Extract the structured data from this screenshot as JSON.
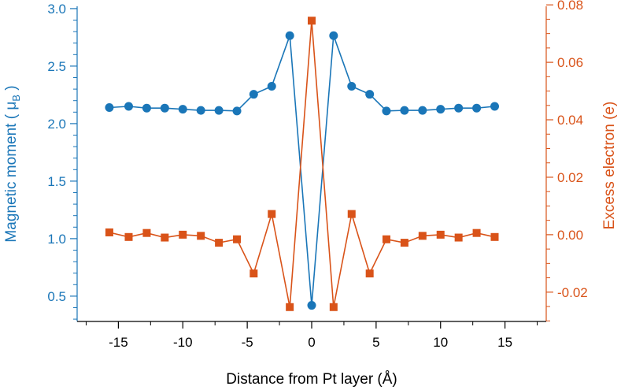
{
  "chart_data": {
    "type": "line",
    "xlabel": "Distance from Pt layer (Å)",
    "ylabel_left_main": "Magnetic moment ( μ",
    "ylabel_left_sub": "B",
    "ylabel_left_end": " )",
    "ylabel_right": "Excess electron (e)",
    "xlim": [
      -18.2,
      18.2
    ],
    "ylim_left": [
      0.28,
      3.02
    ],
    "ylim_right": [
      -0.0302,
      0.0795
    ],
    "x_ticks": [
      {
        "value": -15,
        "label": "-15"
      },
      {
        "value": -10,
        "label": "-10"
      },
      {
        "value": -5,
        "label": "-5"
      },
      {
        "value": 0,
        "label": "0"
      },
      {
        "value": 5,
        "label": "5"
      },
      {
        "value": 10,
        "label": "10"
      },
      {
        "value": 15,
        "label": "15"
      }
    ],
    "y_left_ticks": [
      {
        "value": 0.5,
        "label": "0.5"
      },
      {
        "value": 1.0,
        "label": "1.0"
      },
      {
        "value": 1.5,
        "label": "1.5"
      },
      {
        "value": 2.0,
        "label": "2.0"
      },
      {
        "value": 2.5,
        "label": "2.5"
      },
      {
        "value": 3.0,
        "label": "3.0"
      }
    ],
    "y_right_ticks": [
      {
        "value": -0.02,
        "label": "-0.02"
      },
      {
        "value": 0.0,
        "label": "0.00"
      },
      {
        "value": 0.02,
        "label": "0.02"
      },
      {
        "value": 0.04,
        "label": "0.04"
      },
      {
        "value": 0.06,
        "label": "0.06"
      },
      {
        "value": 0.08,
        "label": "0.08"
      }
    ],
    "series": [
      {
        "name": "Magnetic moment",
        "axis": "left",
        "color": "#1a76b8",
        "marker": "circle",
        "x": [
          -15.7,
          -14.2,
          -12.8,
          -11.4,
          -10.0,
          -8.6,
          -7.2,
          -5.8,
          -4.5,
          -3.1,
          -1.7,
          0.0,
          1.7,
          3.1,
          4.5,
          5.8,
          7.2,
          8.6,
          10.0,
          11.4,
          12.8,
          14.2
        ],
        "y": [
          2.14,
          2.15,
          2.135,
          2.135,
          2.125,
          2.115,
          2.115,
          2.11,
          2.255,
          2.325,
          2.765,
          0.42,
          2.765,
          2.325,
          2.255,
          2.11,
          2.115,
          2.115,
          2.125,
          2.135,
          2.135,
          2.15
        ]
      },
      {
        "name": "Excess electron",
        "axis": "right",
        "color": "#d95319",
        "marker": "square",
        "x": [
          -15.7,
          -14.2,
          -12.8,
          -11.4,
          -10.0,
          -8.6,
          -7.2,
          -5.8,
          -4.5,
          -3.1,
          -1.7,
          0.0,
          1.7,
          3.1,
          4.5,
          5.8,
          7.2,
          8.6,
          10.0,
          11.4,
          12.8,
          14.2
        ],
        "y": [
          0.0008,
          -0.0008,
          0.0006,
          -0.001,
          0.0,
          -0.0004,
          -0.0028,
          -0.0016,
          -0.0135,
          0.0072,
          -0.0252,
          0.0745,
          -0.0252,
          0.0072,
          -0.0135,
          -0.0016,
          -0.0028,
          -0.0004,
          0.0,
          -0.001,
          0.0006,
          -0.0008
        ]
      }
    ]
  }
}
